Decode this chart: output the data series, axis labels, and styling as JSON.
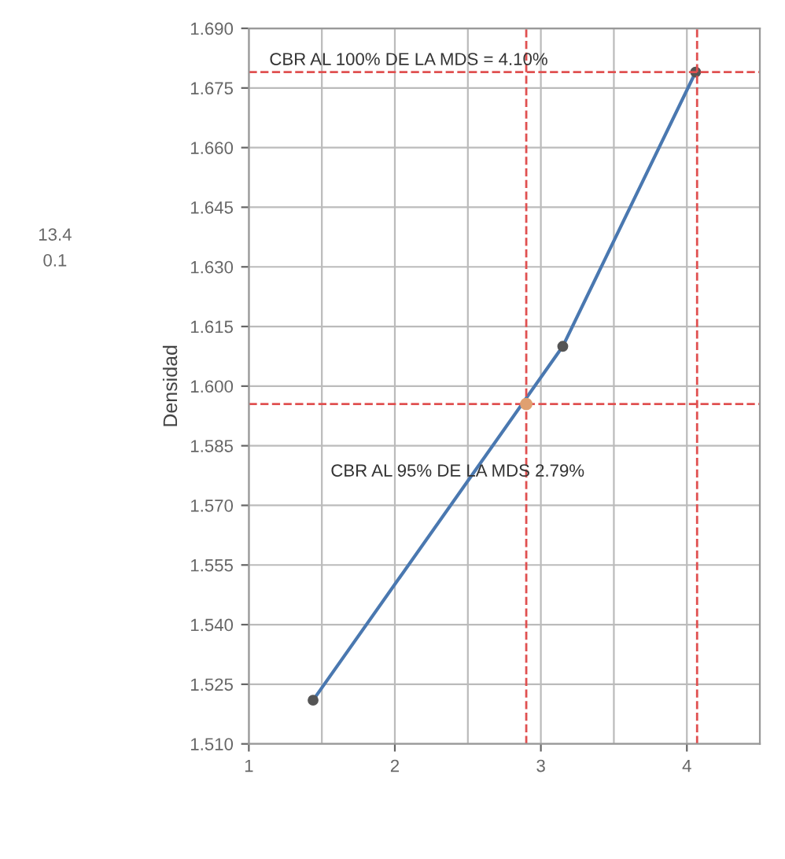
{
  "chart_data": {
    "type": "line",
    "ylabel": "Densidad",
    "series": [
      {
        "color": "#4a78b0",
        "x": [
          1.44,
          3.15,
          4.06
        ],
        "values": [
          1.521,
          1.61,
          1.679
        ],
        "marker": "circle"
      },
      {
        "type": "scatter",
        "color": "#e0a070",
        "x": [
          2.9
        ],
        "values": [
          1.5955
        ],
        "marker": "circle"
      }
    ],
    "xlim": [
      1,
      4.5
    ],
    "xticks": [
      1,
      2,
      3,
      4
    ],
    "ylim": [
      1.51,
      1.69
    ],
    "yticks": [
      {
        "value": 1.51,
        "label": "1.510"
      },
      {
        "value": 1.525,
        "label": "1.525"
      },
      {
        "value": 1.54,
        "label": "1.540"
      },
      {
        "value": 1.555,
        "label": "1.555"
      },
      {
        "value": 1.57,
        "label": "1.570"
      },
      {
        "value": 1.585,
        "label": "1.585"
      },
      {
        "value": 1.6,
        "label": "1.600"
      },
      {
        "value": 1.615,
        "label": "1.615"
      },
      {
        "value": 1.63,
        "label": "1.630"
      },
      {
        "value": 1.645,
        "label": "1.645"
      },
      {
        "value": 1.66,
        "label": "1.660"
      },
      {
        "value": 1.675,
        "label": "1.675"
      },
      {
        "value": 1.69,
        "label": "1.690"
      }
    ],
    "ref_lines": [
      {
        "axis": "y",
        "value": 1.5955,
        "color": "#e05050",
        "line_style": "dashed"
      },
      {
        "axis": "x",
        "value": 2.9,
        "color": "#e05050",
        "line_style": "dashed"
      },
      {
        "axis": "y",
        "value": 1.679,
        "color": "#e05050",
        "line_style": "dashed"
      },
      {
        "axis": "x",
        "value": 4.07,
        "color": "#e05050",
        "line_style": "dashed"
      }
    ],
    "annotations": [
      "CBR AL 100% DE LA MDS = 4.10%",
      "CBR AL 95% DE LA MDS 2.79%",
      "13.4",
      "0.1"
    ],
    "grid": true
  }
}
